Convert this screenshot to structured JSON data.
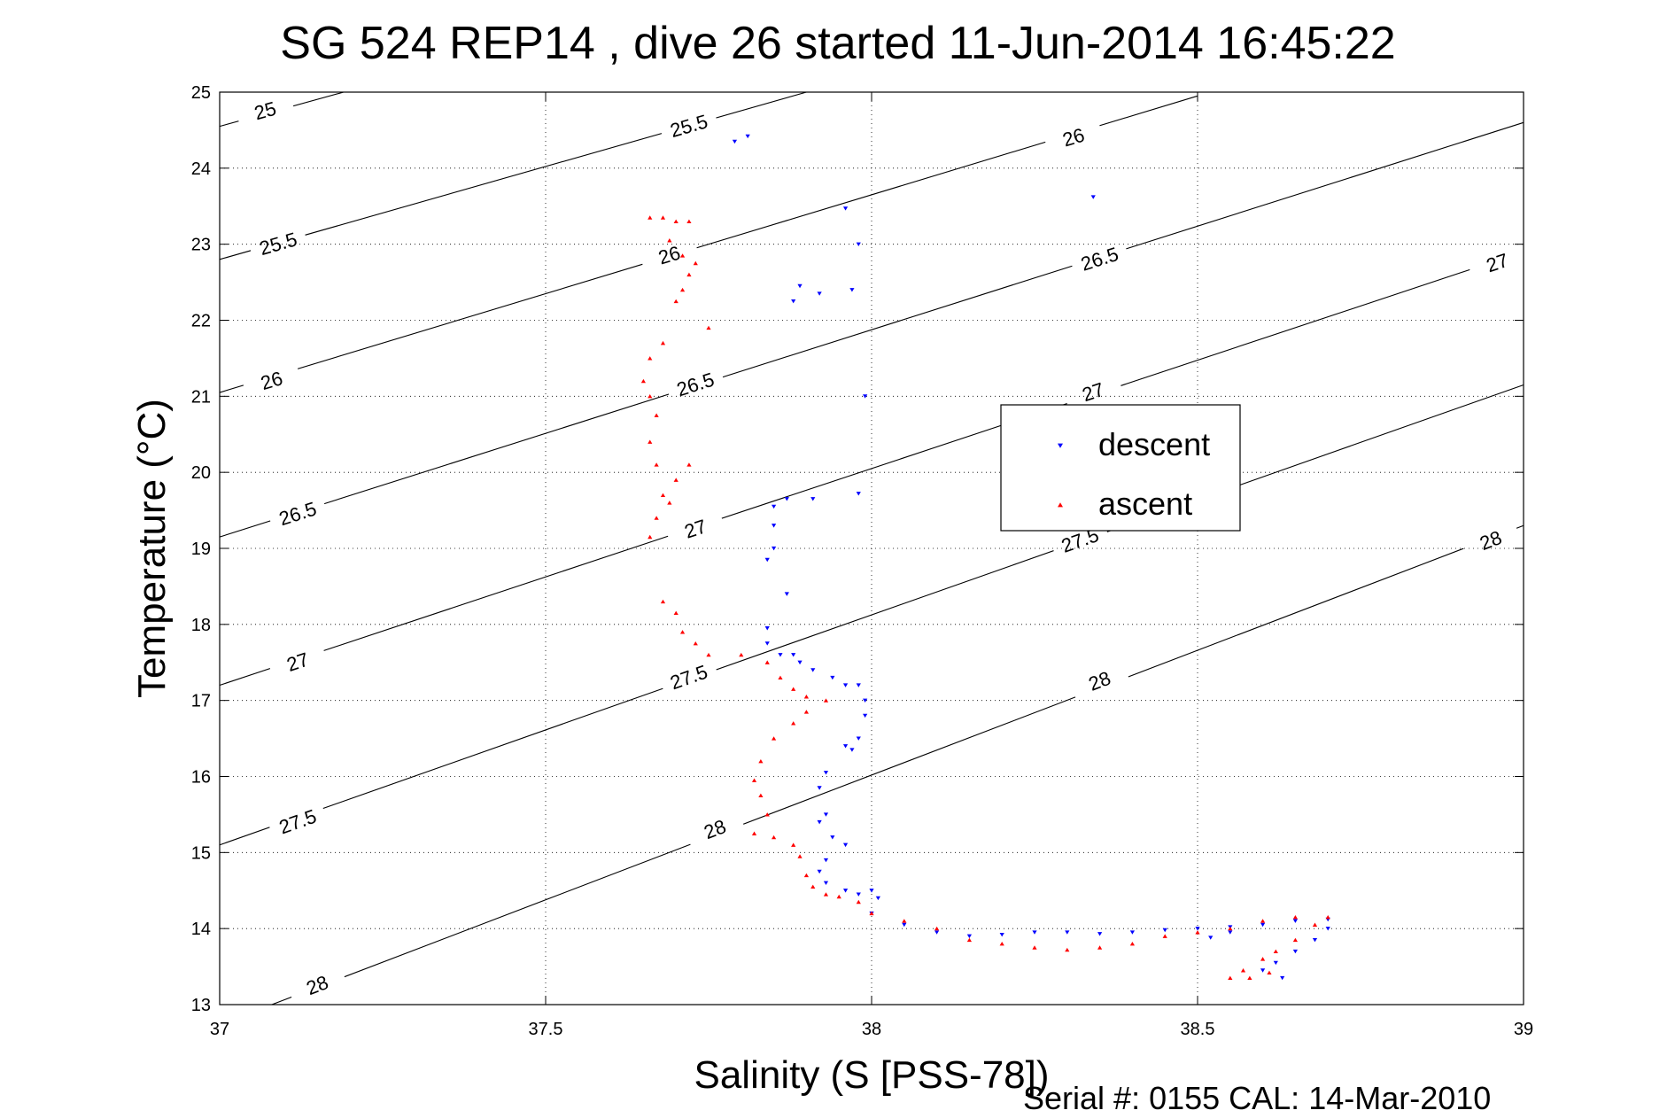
{
  "chart_data": {
    "type": "scatter",
    "title": "SG 524   REP14  , dive 26 started 11-Jun-2014 16:45:22",
    "xlabel": "Salinity (S [PSS-78])",
    "ylabel": "Temperature (°C)",
    "xlim": [
      37,
      39
    ],
    "ylim": [
      13,
      25
    ],
    "x_ticks": [
      "37",
      "37.5",
      "38",
      "38.5",
      "39"
    ],
    "y_ticks": [
      "13",
      "14",
      "15",
      "16",
      "17",
      "18",
      "19",
      "20",
      "21",
      "22",
      "23",
      "24",
      "25"
    ],
    "grid": true,
    "legend_position": "middle-right",
    "footer": "Serial #: 0155  CAL: 14-Mar-2010",
    "density_contours": [
      {
        "value": "25",
        "points": [
          [
            37.0,
            24.55
          ],
          [
            37.19,
            25.0
          ]
        ],
        "label_at": [
          37.07,
          24.75
        ]
      },
      {
        "value": "25.5",
        "points": [
          [
            37.0,
            22.8
          ],
          [
            37.9,
            25.0
          ]
        ],
        "label_at_list": [
          [
            37.09,
            23.0
          ],
          [
            37.72,
            24.55
          ]
        ]
      },
      {
        "value": "26",
        "points": [
          [
            37.0,
            21.05
          ],
          [
            38.5,
            24.95
          ]
        ],
        "label_at_list": [
          [
            37.08,
            21.2
          ],
          [
            37.69,
            22.85
          ],
          [
            38.31,
            24.4
          ]
        ]
      },
      {
        "value": "26.5",
        "points": [
          [
            37.0,
            19.15
          ],
          [
            39.0,
            24.6
          ]
        ],
        "label_at_list": [
          [
            37.12,
            19.45
          ],
          [
            37.73,
            21.15
          ],
          [
            38.35,
            22.8
          ]
        ]
      },
      {
        "value": "27",
        "points": [
          [
            37.0,
            17.2
          ],
          [
            39.0,
            22.9
          ]
        ],
        "label_at_list": [
          [
            37.12,
            17.5
          ],
          [
            37.73,
            19.25
          ],
          [
            38.34,
            21.05
          ],
          [
            38.96,
            22.75
          ]
        ]
      },
      {
        "value": "27.5",
        "points": [
          [
            37.0,
            15.1
          ],
          [
            39.0,
            21.15
          ]
        ],
        "label_at_list": [
          [
            37.12,
            15.4
          ],
          [
            37.72,
            17.3
          ],
          [
            38.32,
            19.1
          ]
        ]
      },
      {
        "value": "28",
        "points": [
          [
            37.08,
            13.0
          ],
          [
            39.0,
            19.3
          ]
        ],
        "label_at_list": [
          [
            37.15,
            13.25
          ],
          [
            37.76,
            15.3
          ],
          [
            38.35,
            17.25
          ],
          [
            38.95,
            19.1
          ]
        ]
      }
    ],
    "series": [
      {
        "name": "descent",
        "color": "#0000ff",
        "marker": "triangle-down",
        "points": [
          [
            37.79,
            24.35
          ],
          [
            37.81,
            24.42
          ],
          [
            37.96,
            23.47
          ],
          [
            37.98,
            23.0
          ],
          [
            37.89,
            22.45
          ],
          [
            37.88,
            22.25
          ],
          [
            37.92,
            22.35
          ],
          [
            37.97,
            22.4
          ],
          [
            37.99,
            21.0
          ],
          [
            38.34,
            23.62
          ],
          [
            37.85,
            19.55
          ],
          [
            37.87,
            19.65
          ],
          [
            37.91,
            19.65
          ],
          [
            37.98,
            19.72
          ],
          [
            37.85,
            19.3
          ],
          [
            37.85,
            19.0
          ],
          [
            37.84,
            18.85
          ],
          [
            37.87,
            18.4
          ],
          [
            37.84,
            17.95
          ],
          [
            37.84,
            17.75
          ],
          [
            37.86,
            17.6
          ],
          [
            37.88,
            17.6
          ],
          [
            37.89,
            17.5
          ],
          [
            37.91,
            17.4
          ],
          [
            37.94,
            17.3
          ],
          [
            37.96,
            17.2
          ],
          [
            37.98,
            17.2
          ],
          [
            37.99,
            17.0
          ],
          [
            37.99,
            16.8
          ],
          [
            37.98,
            16.5
          ],
          [
            37.97,
            16.35
          ],
          [
            37.96,
            16.4
          ],
          [
            37.93,
            16.05
          ],
          [
            37.92,
            15.85
          ],
          [
            37.93,
            15.5
          ],
          [
            37.92,
            15.4
          ],
          [
            37.94,
            15.2
          ],
          [
            37.96,
            15.1
          ],
          [
            37.93,
            14.9
          ],
          [
            37.92,
            14.75
          ],
          [
            37.93,
            14.6
          ],
          [
            37.96,
            14.5
          ],
          [
            37.98,
            14.45
          ],
          [
            38.0,
            14.5
          ],
          [
            38.01,
            14.4
          ],
          [
            38.0,
            14.2
          ],
          [
            38.05,
            14.05
          ],
          [
            38.1,
            13.95
          ],
          [
            38.15,
            13.9
          ],
          [
            38.2,
            13.92
          ],
          [
            38.25,
            13.95
          ],
          [
            38.3,
            13.95
          ],
          [
            38.35,
            13.93
          ],
          [
            38.4,
            13.95
          ],
          [
            38.45,
            13.98
          ],
          [
            38.5,
            14.0
          ],
          [
            38.55,
            14.02
          ],
          [
            38.6,
            14.05
          ],
          [
            38.65,
            14.1
          ],
          [
            38.7,
            14.12
          ],
          [
            38.7,
            14.0
          ],
          [
            38.68,
            13.85
          ],
          [
            38.65,
            13.7
          ],
          [
            38.62,
            13.55
          ],
          [
            38.6,
            13.45
          ],
          [
            38.63,
            13.35
          ],
          [
            38.55,
            13.95
          ],
          [
            38.52,
            13.88
          ]
        ]
      },
      {
        "name": "ascent",
        "color": "#ff0000",
        "marker": "triangle-up",
        "points": [
          [
            37.66,
            23.35
          ],
          [
            37.68,
            23.35
          ],
          [
            37.7,
            23.3
          ],
          [
            37.72,
            23.3
          ],
          [
            37.69,
            23.05
          ],
          [
            37.71,
            22.85
          ],
          [
            37.73,
            22.75
          ],
          [
            37.72,
            22.6
          ],
          [
            37.71,
            22.4
          ],
          [
            37.7,
            22.25
          ],
          [
            37.75,
            21.9
          ],
          [
            37.68,
            21.7
          ],
          [
            37.66,
            21.5
          ],
          [
            37.65,
            21.2
          ],
          [
            37.66,
            21.0
          ],
          [
            37.67,
            20.75
          ],
          [
            37.66,
            20.4
          ],
          [
            37.67,
            20.1
          ],
          [
            37.72,
            20.1
          ],
          [
            37.7,
            19.9
          ],
          [
            37.68,
            19.7
          ],
          [
            37.69,
            19.6
          ],
          [
            37.67,
            19.4
          ],
          [
            37.66,
            19.15
          ],
          [
            37.68,
            18.3
          ],
          [
            37.7,
            18.15
          ],
          [
            37.71,
            17.9
          ],
          [
            37.73,
            17.75
          ],
          [
            37.75,
            17.6
          ],
          [
            37.8,
            17.6
          ],
          [
            37.84,
            17.5
          ],
          [
            37.86,
            17.3
          ],
          [
            37.88,
            17.15
          ],
          [
            37.9,
            17.05
          ],
          [
            37.93,
            17.0
          ],
          [
            37.9,
            16.85
          ],
          [
            37.88,
            16.7
          ],
          [
            37.85,
            16.5
          ],
          [
            37.83,
            16.2
          ],
          [
            37.82,
            15.95
          ],
          [
            37.83,
            15.75
          ],
          [
            37.84,
            15.5
          ],
          [
            37.82,
            15.25
          ],
          [
            37.85,
            15.2
          ],
          [
            37.88,
            15.1
          ],
          [
            37.89,
            14.95
          ],
          [
            37.9,
            14.7
          ],
          [
            37.91,
            14.55
          ],
          [
            37.93,
            14.45
          ],
          [
            37.95,
            14.42
          ],
          [
            37.98,
            14.35
          ],
          [
            38.0,
            14.2
          ],
          [
            38.05,
            14.1
          ],
          [
            38.1,
            14.0
          ],
          [
            38.15,
            13.85
          ],
          [
            38.2,
            13.8
          ],
          [
            38.25,
            13.75
          ],
          [
            38.3,
            13.72
          ],
          [
            38.35,
            13.75
          ],
          [
            38.4,
            13.8
          ],
          [
            38.45,
            13.9
          ],
          [
            38.5,
            13.95
          ],
          [
            38.55,
            14.0
          ],
          [
            38.6,
            14.1
          ],
          [
            38.65,
            14.15
          ],
          [
            38.7,
            14.15
          ],
          [
            38.68,
            14.05
          ],
          [
            38.65,
            13.85
          ],
          [
            38.62,
            13.7
          ],
          [
            38.6,
            13.6
          ],
          [
            38.57,
            13.45
          ],
          [
            38.55,
            13.35
          ],
          [
            38.58,
            13.35
          ],
          [
            38.61,
            13.42
          ]
        ]
      }
    ]
  }
}
